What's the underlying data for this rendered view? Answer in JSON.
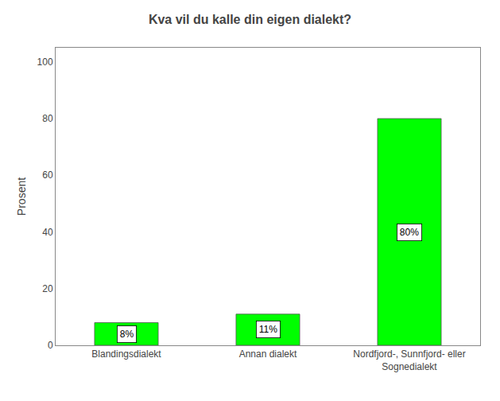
{
  "chart_data": {
    "type": "bar",
    "title": "Kva vil du kalle din eigen dialekt?",
    "categories": [
      "Blandingsdialekt",
      "Annan dialekt",
      "Nordfjord-, Sunnfjord- eller\nSognedialekt"
    ],
    "values": [
      8,
      11,
      80
    ],
    "value_labels": [
      "8%",
      "11%",
      "80%"
    ],
    "data_labels": true,
    "color": "#00FF00",
    "ylabel": "Prosent",
    "ylim": [
      0,
      105
    ],
    "yticks": [
      0,
      20,
      40,
      60,
      80,
      100
    ],
    "grid": false
  }
}
